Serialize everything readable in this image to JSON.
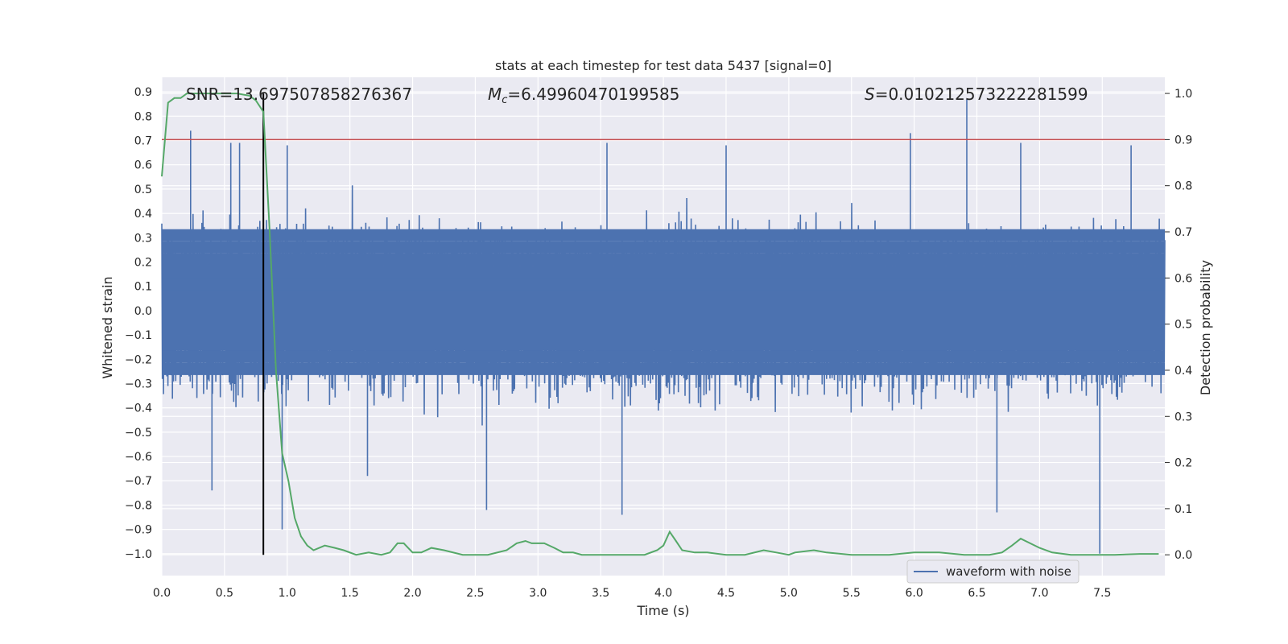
{
  "chart_data": {
    "type": "line",
    "title": "stats at each timestep for test data 5437 [signal=0]",
    "xlabel": "Time (s)",
    "ylabel_left": "Whitened strain",
    "ylabel_right": "Detection probability",
    "xlim": [
      0.0,
      7.999
    ],
    "ylim_left": [
      -1.09,
      0.96
    ],
    "ylim_right": [
      -0.045,
      1.035
    ],
    "xticks": [
      "0.0",
      "0.5",
      "1.0",
      "1.5",
      "2.0",
      "2.5",
      "3.0",
      "3.5",
      "4.0",
      "4.5",
      "5.0",
      "5.5",
      "6.0",
      "6.5",
      "7.0",
      "7.5"
    ],
    "yticks_left": [
      "0.9",
      "0.8",
      "0.7",
      "0.6",
      "0.5",
      "0.4",
      "0.3",
      "0.2",
      "0.1",
      "0.0",
      "-0.1",
      "-0.2",
      "-0.3",
      "-0.4",
      "-0.5",
      "-0.6",
      "-0.7",
      "-0.8",
      "-0.9",
      "-1.0"
    ],
    "yticks_right": [
      "1.0",
      "0.9",
      "0.8",
      "0.7",
      "0.6",
      "0.5",
      "0.4",
      "0.3",
      "0.2",
      "0.1",
      "0.0"
    ],
    "grid": true,
    "legend": {
      "placement": "lower-right",
      "entries": [
        "waveform with noise"
      ]
    },
    "annotations": {
      "snr": "SNR=13.697507858276367",
      "mc_symbol": "M",
      "mc_sub": "c",
      "mc_value": "=6.49960470199585",
      "s_symbol": "S",
      "s_value": "=0.010212573222281599"
    },
    "threshold_probability": 0.9,
    "marker_time": 0.81,
    "waveform": {
      "name": "waveform with noise",
      "envelope": "random noise, typical amplitude about 0.3 to 0.5 with spikes up to about 0.87 and down to about -1.0",
      "spikes": [
        {
          "x": 0.23,
          "y": 0.74
        },
        {
          "x": 0.4,
          "y": -0.74
        },
        {
          "x": 0.55,
          "y": 0.69
        },
        {
          "x": 0.62,
          "y": 0.69
        },
        {
          "x": 1.0,
          "y": 0.68
        },
        {
          "x": 0.96,
          "y": -0.9
        },
        {
          "x": 1.64,
          "y": -0.68
        },
        {
          "x": 2.59,
          "y": -0.82
        },
        {
          "x": 3.55,
          "y": 0.69
        },
        {
          "x": 3.67,
          "y": -0.84
        },
        {
          "x": 4.5,
          "y": 0.68
        },
        {
          "x": 5.97,
          "y": 0.73
        },
        {
          "x": 6.42,
          "y": 0.87
        },
        {
          "x": 6.66,
          "y": -0.83
        },
        {
          "x": 6.85,
          "y": 0.69
        },
        {
          "x": 7.48,
          "y": -1.0
        },
        {
          "x": 7.73,
          "y": 0.68
        }
      ]
    },
    "probability": {
      "color": "#55a868",
      "x": [
        0.0,
        0.05,
        0.1,
        0.15,
        0.2,
        0.3,
        0.4,
        0.5,
        0.6,
        0.7,
        0.75,
        0.81,
        0.86,
        0.91,
        0.96,
        1.01,
        1.06,
        1.11,
        1.16,
        1.21,
        1.3,
        1.38,
        1.45,
        1.55,
        1.65,
        1.75,
        1.82,
        1.88,
        1.93,
        2.0,
        2.07,
        2.15,
        2.25,
        2.4,
        2.6,
        2.75,
        2.83,
        2.9,
        2.95,
        3.05,
        3.13,
        3.2,
        3.28,
        3.35,
        3.45,
        3.55,
        3.7,
        3.85,
        3.95,
        4.0,
        4.05,
        4.1,
        4.15,
        4.25,
        4.35,
        4.5,
        4.65,
        4.8,
        4.9,
        5.0,
        5.05,
        5.2,
        5.3,
        5.5,
        5.8,
        6.0,
        6.2,
        6.4,
        6.6,
        6.7,
        6.78,
        6.85,
        7.0,
        7.1,
        7.25,
        7.4,
        7.6,
        7.8,
        7.95
      ],
      "y": [
        0.82,
        0.98,
        0.99,
        0.99,
        1.0,
        1.0,
        1.0,
        1.0,
        1.0,
        0.995,
        0.985,
        0.96,
        0.7,
        0.4,
        0.22,
        0.16,
        0.08,
        0.04,
        0.02,
        0.01,
        0.02,
        0.015,
        0.01,
        0.0,
        0.005,
        0.0,
        0.005,
        0.025,
        0.025,
        0.005,
        0.005,
        0.015,
        0.01,
        0.0,
        0.0,
        0.01,
        0.025,
        0.03,
        0.025,
        0.025,
        0.015,
        0.005,
        0.005,
        0.0,
        0.0,
        0.0,
        0.0,
        0.0,
        0.01,
        0.02,
        0.05,
        0.03,
        0.01,
        0.005,
        0.005,
        0.0,
        0.0,
        0.01,
        0.005,
        0.0,
        0.005,
        0.01,
        0.005,
        0.0,
        0.0,
        0.005,
        0.005,
        0.0,
        0.0,
        0.005,
        0.02,
        0.035,
        0.015,
        0.005,
        0.0,
        0.0,
        0.0,
        0.002,
        0.002
      ]
    }
  }
}
